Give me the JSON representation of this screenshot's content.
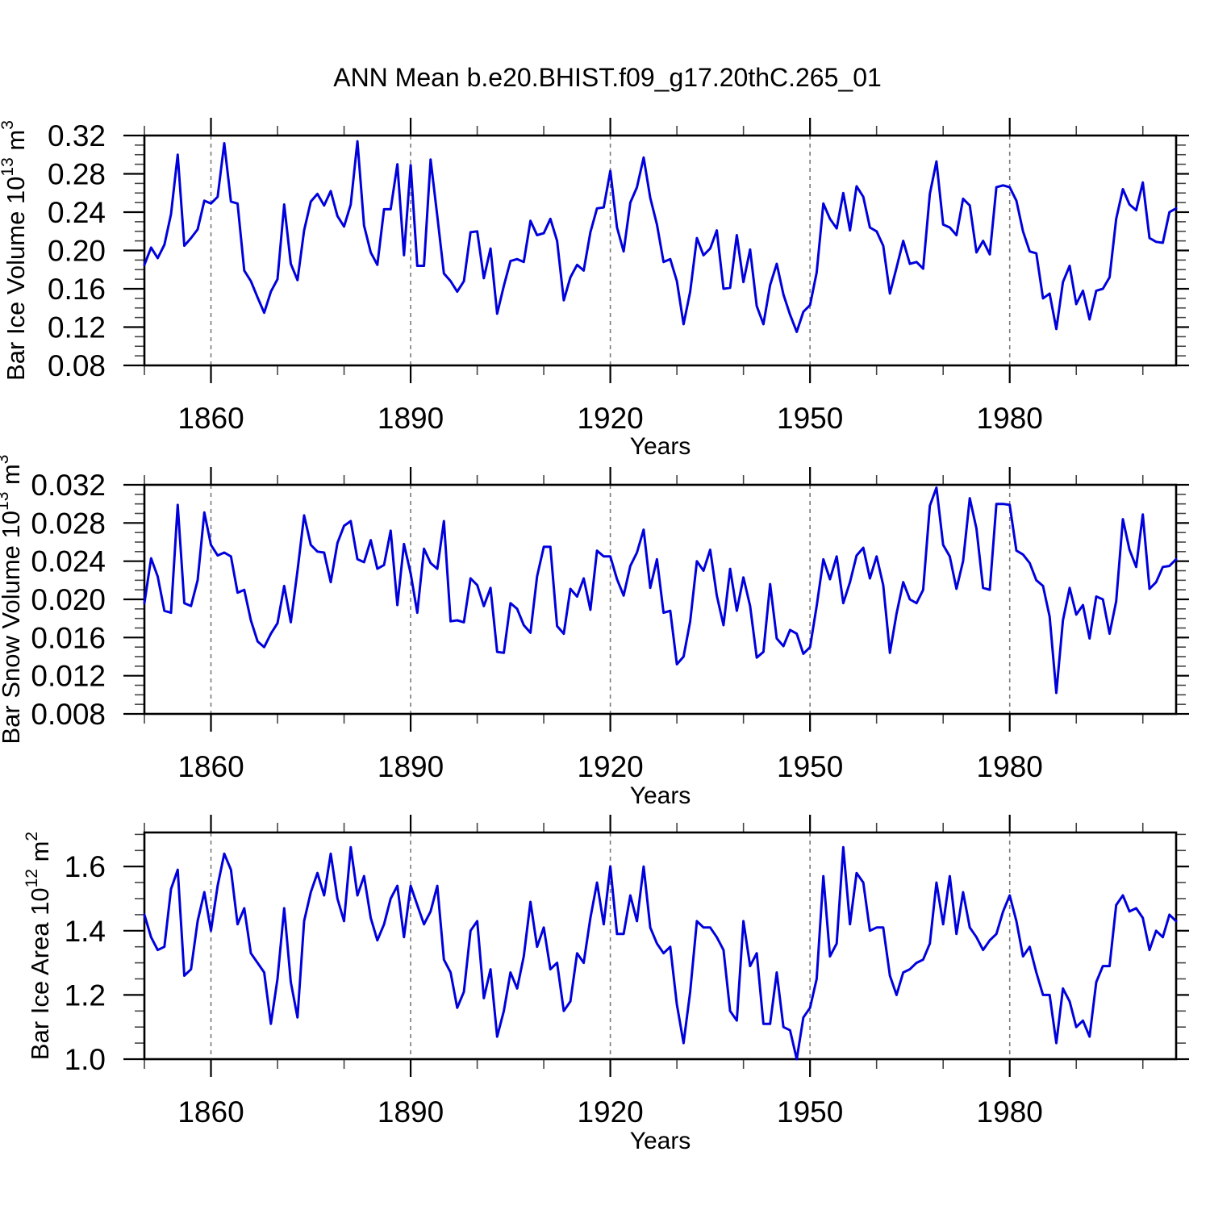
{
  "title": "ANN Mean b.e20.BHIST.f09_g17.20thC.265_01",
  "xlabel": "Years",
  "line_color": "#0000dd",
  "grid_color": "#7a7a7a",
  "axis_color": "#000000",
  "chart_data": [
    {
      "name": "bar-ice-volume",
      "type": "line",
      "ylabel_text": "Bar Ice Volume 10^13 m^3",
      "ylabel_parts": [
        [
          "Bar Ice Volume 10",
          "n"
        ],
        [
          "13",
          "sup"
        ],
        [
          " m",
          "n"
        ],
        [
          "3",
          "sup"
        ]
      ],
      "xlabel": "Years",
      "x_start": 1850,
      "x_end": 2005,
      "xlim": [
        1850,
        2005
      ],
      "ylim": [
        0.08,
        0.32
      ],
      "y_ticks": [
        0.08,
        0.12,
        0.16,
        0.2,
        0.24,
        0.28,
        0.32
      ],
      "y_tick_labels": [
        "0.08",
        "0.12",
        "0.16",
        "0.20",
        "0.24",
        "0.28",
        "0.32"
      ],
      "y_minor_step": 0.01,
      "x_ticks": [
        1860,
        1890,
        1920,
        1950,
        1980
      ],
      "x_tick_labels": [
        "1860",
        "1890",
        "1920",
        "1950",
        "1980"
      ],
      "x_minor_step": 10,
      "grid": "dashed-vertical-at-major-x",
      "legend_position": "none",
      "values": [
        0.185,
        0.203,
        0.192,
        0.206,
        0.238,
        0.3,
        0.205,
        0.213,
        0.222,
        0.252,
        0.249,
        0.256,
        0.312,
        0.251,
        0.249,
        0.179,
        0.168,
        0.151,
        0.135,
        0.157,
        0.17,
        0.248,
        0.186,
        0.169,
        0.221,
        0.251,
        0.259,
        0.247,
        0.262,
        0.236,
        0.225,
        0.248,
        0.314,
        0.226,
        0.198,
        0.185,
        0.243,
        0.243,
        0.29,
        0.195,
        0.289,
        0.184,
        0.184,
        0.295,
        0.236,
        0.176,
        0.168,
        0.157,
        0.168,
        0.219,
        0.22,
        0.171,
        0.202,
        0.134,
        0.163,
        0.189,
        0.191,
        0.188,
        0.231,
        0.216,
        0.218,
        0.233,
        0.21,
        0.148,
        0.172,
        0.185,
        0.179,
        0.219,
        0.244,
        0.245,
        0.283,
        0.224,
        0.199,
        0.25,
        0.266,
        0.297,
        0.255,
        0.227,
        0.188,
        0.191,
        0.168,
        0.123,
        0.157,
        0.213,
        0.195,
        0.202,
        0.221,
        0.16,
        0.161,
        0.216,
        0.167,
        0.201,
        0.142,
        0.123,
        0.164,
        0.186,
        0.154,
        0.133,
        0.115,
        0.136,
        0.143,
        0.177,
        0.249,
        0.233,
        0.223,
        0.26,
        0.221,
        0.267,
        0.256,
        0.224,
        0.22,
        0.205,
        0.155,
        0.182,
        0.21,
        0.186,
        0.188,
        0.181,
        0.259,
        0.293,
        0.227,
        0.224,
        0.216,
        0.254,
        0.247,
        0.198,
        0.21,
        0.196,
        0.266,
        0.268,
        0.266,
        0.252,
        0.22,
        0.199,
        0.197,
        0.15,
        0.155,
        0.118,
        0.167,
        0.184,
        0.144,
        0.158,
        0.128,
        0.158,
        0.16,
        0.172,
        0.233,
        0.264,
        0.248,
        0.242,
        0.271,
        0.213,
        0.209,
        0.208,
        0.24,
        0.244
      ]
    },
    {
      "name": "bar-snow-volume",
      "type": "line",
      "ylabel_text": "Bar Snow Volume 10^13 m^3",
      "ylabel_parts": [
        [
          "Bar Snow Volume 10",
          "n"
        ],
        [
          "13",
          "sup"
        ],
        [
          " m",
          "n"
        ],
        [
          "3",
          "sup"
        ]
      ],
      "xlabel": "Years",
      "x_start": 1850,
      "x_end": 2005,
      "xlim": [
        1850,
        2005
      ],
      "ylim": [
        0.008,
        0.032
      ],
      "y_ticks": [
        0.008,
        0.012,
        0.016,
        0.02,
        0.024,
        0.028,
        0.032
      ],
      "y_tick_labels": [
        "0.008",
        "0.012",
        "0.016",
        "0.020",
        "0.024",
        "0.028",
        "0.032"
      ],
      "y_minor_step": 0.001,
      "x_ticks": [
        1860,
        1890,
        1920,
        1950,
        1980
      ],
      "x_tick_labels": [
        "1860",
        "1890",
        "1920",
        "1950",
        "1980"
      ],
      "x_minor_step": 10,
      "grid": "dashed-vertical-at-major-x",
      "legend_position": "none",
      "values": [
        0.0196,
        0.0243,
        0.0224,
        0.0188,
        0.0186,
        0.0299,
        0.0196,
        0.0193,
        0.022,
        0.0291,
        0.0257,
        0.0246,
        0.0249,
        0.0245,
        0.0207,
        0.021,
        0.0178,
        0.0156,
        0.015,
        0.0164,
        0.0175,
        0.0214,
        0.0176,
        0.023,
        0.0288,
        0.0257,
        0.025,
        0.0249,
        0.0218,
        0.0259,
        0.0277,
        0.0282,
        0.0242,
        0.0239,
        0.0262,
        0.0232,
        0.0236,
        0.0272,
        0.0194,
        0.0258,
        0.0227,
        0.0186,
        0.0253,
        0.0238,
        0.0232,
        0.0282,
        0.0177,
        0.0178,
        0.0176,
        0.0222,
        0.0215,
        0.0193,
        0.0212,
        0.0145,
        0.0144,
        0.0196,
        0.019,
        0.0173,
        0.0165,
        0.0224,
        0.0255,
        0.0255,
        0.0172,
        0.0164,
        0.0211,
        0.0203,
        0.0222,
        0.0189,
        0.0251,
        0.0245,
        0.0245,
        0.0221,
        0.0204,
        0.0235,
        0.0249,
        0.0273,
        0.0212,
        0.0242,
        0.0186,
        0.0188,
        0.0132,
        0.014,
        0.0177,
        0.024,
        0.023,
        0.0252,
        0.0204,
        0.0173,
        0.0232,
        0.0188,
        0.0223,
        0.0193,
        0.0139,
        0.0145,
        0.0216,
        0.0159,
        0.0151,
        0.0168,
        0.0164,
        0.0143,
        0.015,
        0.0193,
        0.0242,
        0.0221,
        0.0245,
        0.0196,
        0.0218,
        0.0246,
        0.0254,
        0.0222,
        0.0245,
        0.0215,
        0.0144,
        0.0185,
        0.0218,
        0.02,
        0.0196,
        0.021,
        0.0298,
        0.0317,
        0.0257,
        0.0245,
        0.0211,
        0.024,
        0.0306,
        0.0274,
        0.0212,
        0.021,
        0.03,
        0.03,
        0.0299,
        0.0251,
        0.0247,
        0.0238,
        0.022,
        0.0214,
        0.0182,
        0.0102,
        0.0178,
        0.0212,
        0.0184,
        0.0194,
        0.0159,
        0.0203,
        0.02,
        0.0164,
        0.0198,
        0.0284,
        0.0252,
        0.0234,
        0.0289,
        0.0211,
        0.0218,
        0.0234,
        0.0235,
        0.0242
      ]
    },
    {
      "name": "bar-ice-area",
      "type": "line",
      "ylabel_text": "Bar Ice Area 10^12 m^2",
      "ylabel_parts": [
        [
          "Bar Ice Area 10",
          "n"
        ],
        [
          "12",
          "sup"
        ],
        [
          " m",
          "n"
        ],
        [
          "2",
          "sup"
        ]
      ],
      "xlabel": "Years",
      "x_start": 1850,
      "x_end": 2005,
      "xlim": [
        1850,
        2005
      ],
      "ylim": [
        1.0,
        1.706
      ],
      "y_ticks": [
        1.0,
        1.2,
        1.4,
        1.6
      ],
      "y_tick_labels": [
        "1.0",
        "1.2",
        "1.4",
        "1.6"
      ],
      "y_minor_step": 0.05,
      "x_ticks": [
        1860,
        1890,
        1920,
        1950,
        1980
      ],
      "x_tick_labels": [
        "1860",
        "1890",
        "1920",
        "1950",
        "1980"
      ],
      "x_minor_step": 10,
      "grid": "dashed-vertical-at-major-x",
      "legend_position": "none",
      "values": [
        1.45,
        1.38,
        1.34,
        1.35,
        1.53,
        1.59,
        1.26,
        1.28,
        1.43,
        1.52,
        1.4,
        1.54,
        1.64,
        1.59,
        1.42,
        1.47,
        1.33,
        1.3,
        1.27,
        1.11,
        1.25,
        1.47,
        1.24,
        1.13,
        1.43,
        1.52,
        1.58,
        1.51,
        1.64,
        1.5,
        1.43,
        1.66,
        1.51,
        1.57,
        1.44,
        1.37,
        1.42,
        1.5,
        1.54,
        1.38,
        1.54,
        1.48,
        1.42,
        1.46,
        1.54,
        1.31,
        1.27,
        1.16,
        1.21,
        1.4,
        1.43,
        1.19,
        1.28,
        1.07,
        1.15,
        1.27,
        1.22,
        1.32,
        1.49,
        1.35,
        1.41,
        1.28,
        1.3,
        1.15,
        1.18,
        1.33,
        1.3,
        1.44,
        1.55,
        1.42,
        1.6,
        1.39,
        1.39,
        1.51,
        1.43,
        1.6,
        1.41,
        1.36,
        1.33,
        1.35,
        1.17,
        1.05,
        1.21,
        1.43,
        1.41,
        1.41,
        1.38,
        1.34,
        1.15,
        1.12,
        1.43,
        1.29,
        1.33,
        1.11,
        1.11,
        1.27,
        1.1,
        1.09,
        1.0,
        1.13,
        1.16,
        1.25,
        1.57,
        1.32,
        1.36,
        1.66,
        1.42,
        1.58,
        1.55,
        1.4,
        1.41,
        1.41,
        1.26,
        1.2,
        1.27,
        1.28,
        1.3,
        1.31,
        1.36,
        1.55,
        1.42,
        1.57,
        1.39,
        1.52,
        1.41,
        1.38,
        1.34,
        1.37,
        1.39,
        1.46,
        1.51,
        1.43,
        1.32,
        1.35,
        1.27,
        1.2,
        1.2,
        1.05,
        1.22,
        1.18,
        1.1,
        1.12,
        1.07,
        1.24,
        1.29,
        1.29,
        1.48,
        1.51,
        1.46,
        1.47,
        1.44,
        1.34,
        1.4,
        1.38,
        1.45,
        1.43
      ]
    }
  ]
}
